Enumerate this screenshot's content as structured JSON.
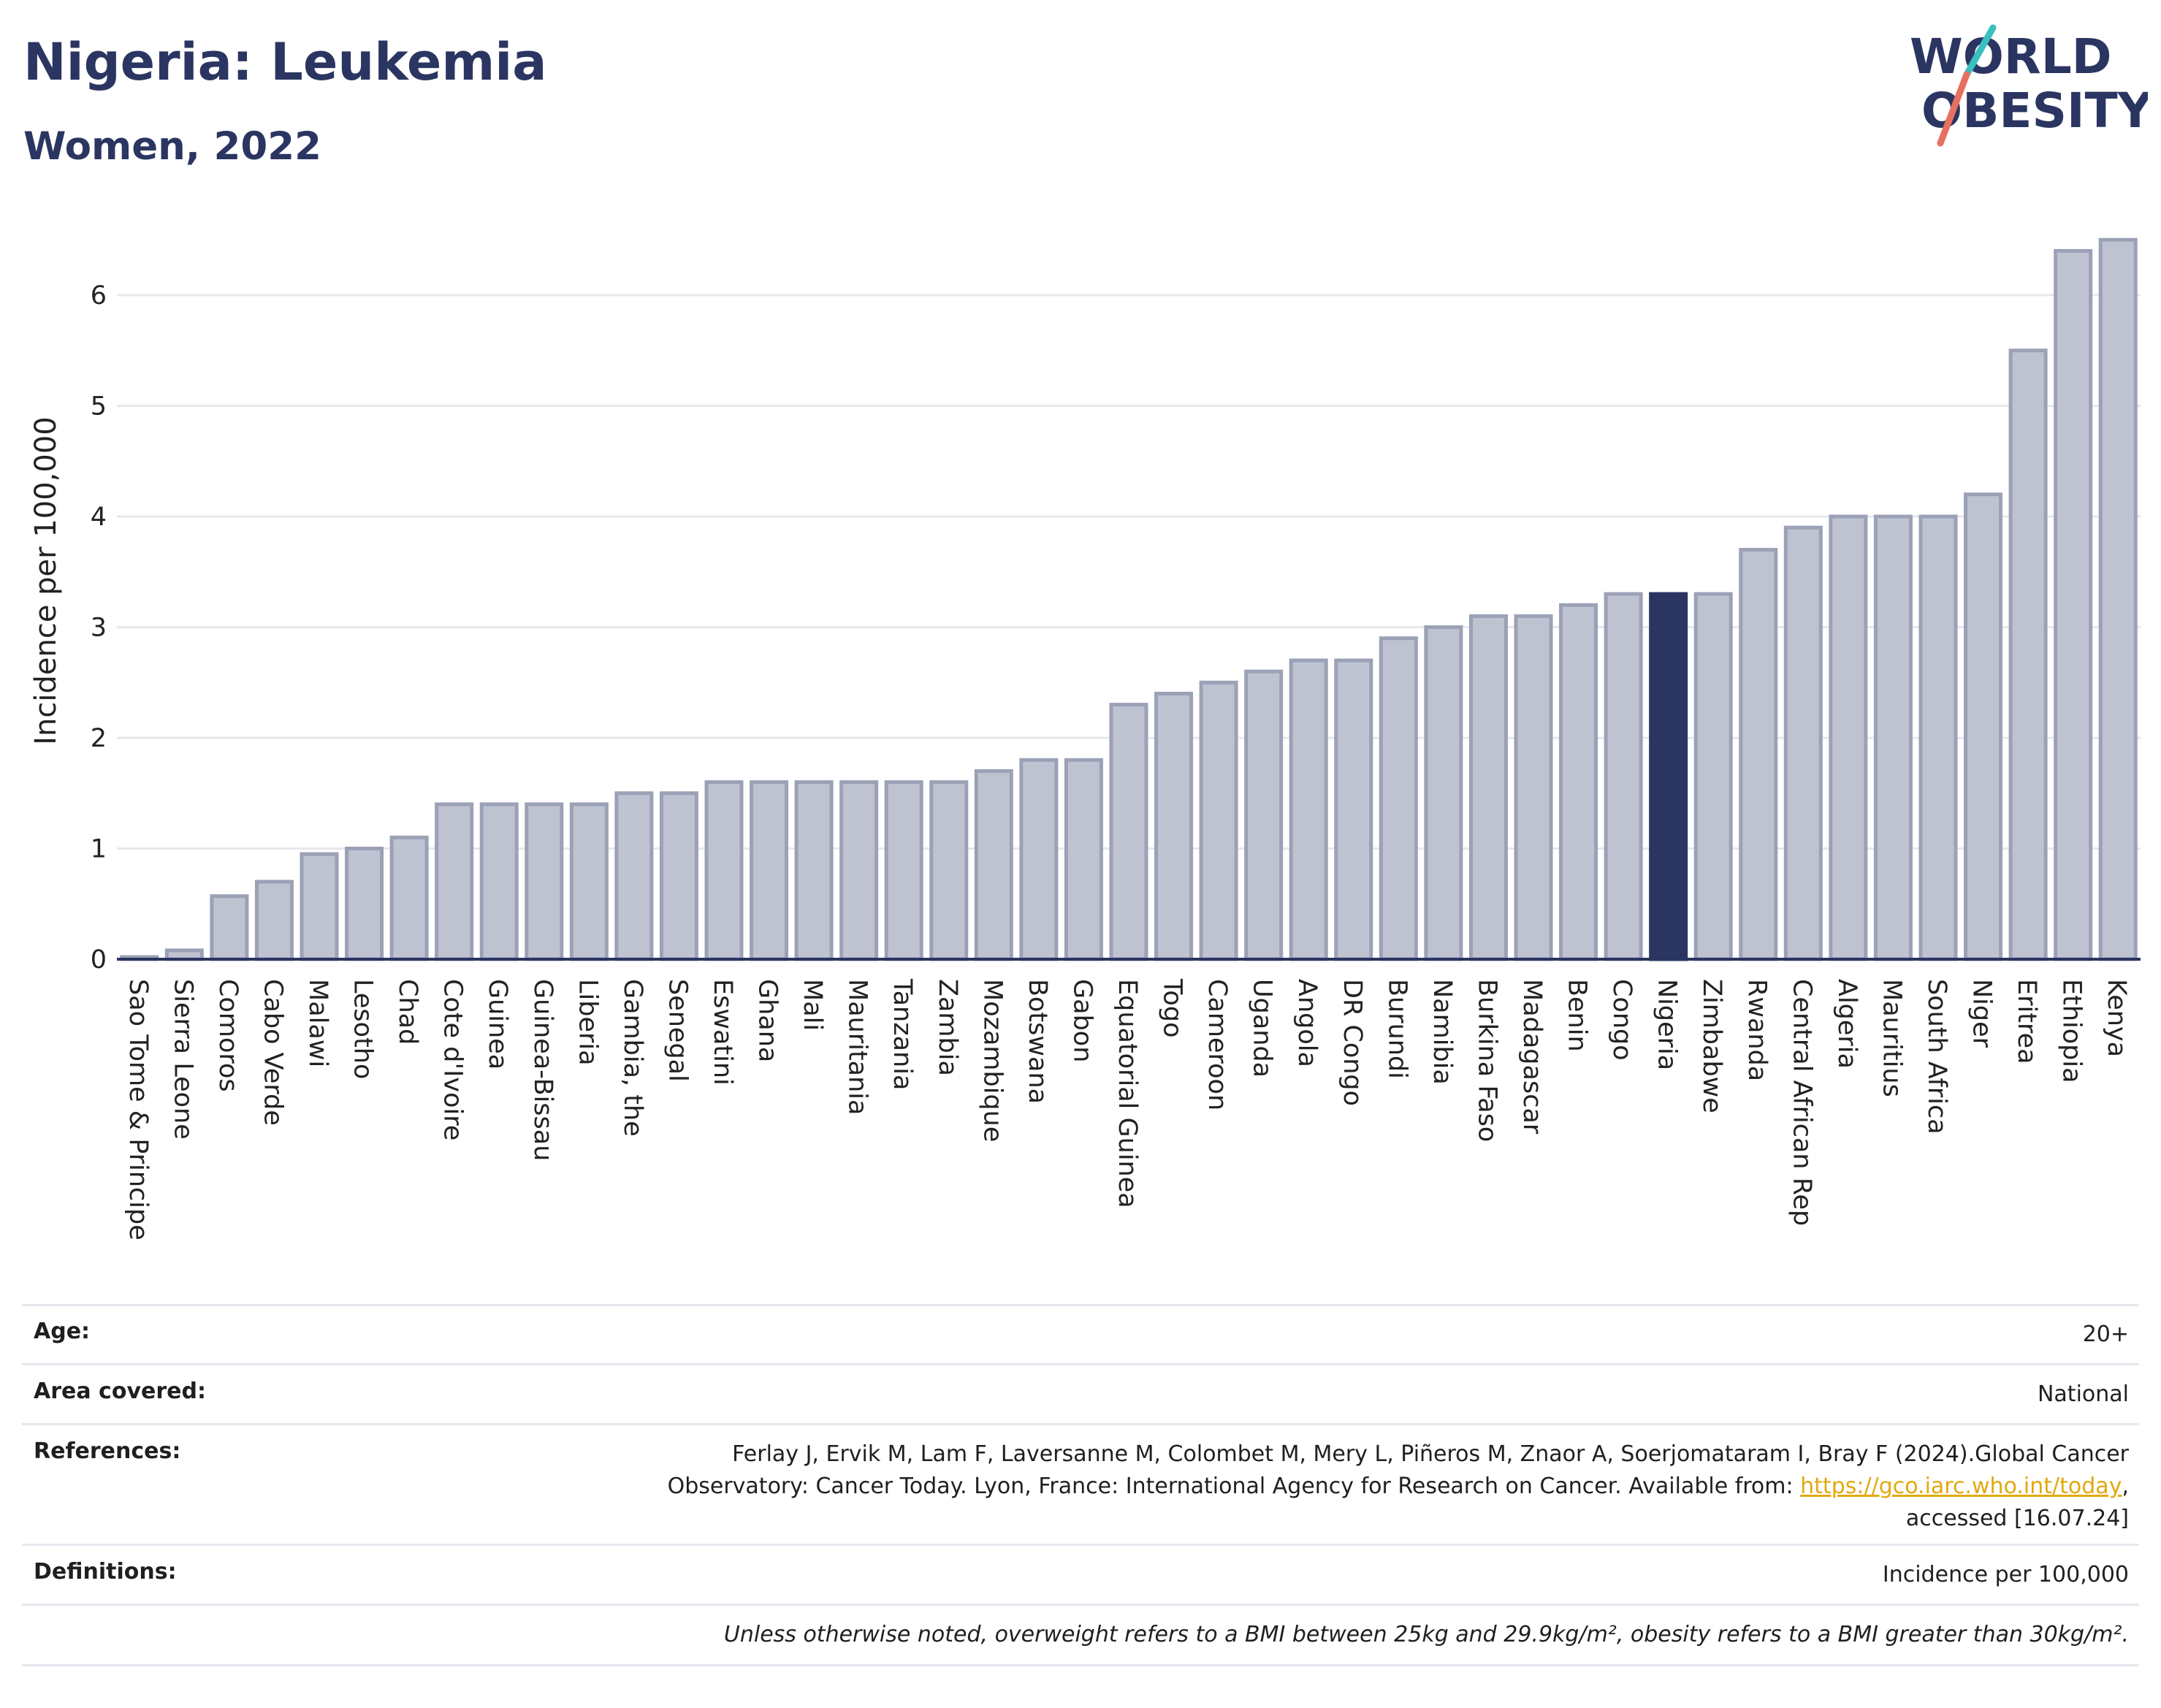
{
  "header": {
    "title": "Nigeria: Leukemia",
    "subtitle": "Women, 2022"
  },
  "logo": {
    "line1": "WORLD",
    "line2": "OBESITY"
  },
  "colors": {
    "bar": "#bfc3d1",
    "bar_stroke": "#9ba1b6",
    "highlight": "#2b3561",
    "grid": "#e6e8ee",
    "title": "#2b3561",
    "logo_teal": "#3bbfbf",
    "logo_coral": "#e8705f"
  },
  "chart_data": {
    "type": "bar",
    "ylabel": "Incidence per 100,000",
    "ylim": [
      0,
      6.6
    ],
    "yticks": [
      0,
      1,
      2,
      3,
      4,
      5,
      6
    ],
    "grid": true,
    "highlight": "Nigeria",
    "categories": [
      "Sao Tome & Principe",
      "Sierra Leone",
      "Comoros",
      "Cabo Verde",
      "Malawi",
      "Lesotho",
      "Chad",
      "Cote d'Ivoire",
      "Guinea",
      "Guinea-Bissau",
      "Liberia",
      "Gambia, the",
      "Senegal",
      "Eswatini",
      "Ghana",
      "Mali",
      "Mauritania",
      "Tanzania",
      "Zambia",
      "Mozambique",
      "Botswana",
      "Gabon",
      "Equatorial Guinea",
      "Togo",
      "Cameroon",
      "Uganda",
      "Angola",
      "DR Congo",
      "Burundi",
      "Namibia",
      "Burkina Faso",
      "Madagascar",
      "Benin",
      "Congo",
      "Nigeria",
      "Zimbabwe",
      "Rwanda",
      "Central African Rep",
      "Algeria",
      "Mauritius",
      "South Africa",
      "Niger",
      "Eritrea",
      "Ethiopia",
      "Kenya"
    ],
    "values": [
      0.02,
      0.08,
      0.57,
      0.7,
      0.95,
      1.0,
      1.1,
      1.4,
      1.4,
      1.4,
      1.4,
      1.5,
      1.5,
      1.6,
      1.6,
      1.6,
      1.6,
      1.6,
      1.6,
      1.7,
      1.8,
      1.8,
      2.3,
      2.4,
      2.5,
      2.6,
      2.7,
      2.7,
      2.9,
      3.0,
      3.1,
      3.1,
      3.2,
      3.3,
      3.3,
      3.3,
      3.7,
      3.9,
      4.0,
      4.0,
      4.0,
      4.2,
      5.5,
      6.4,
      6.5
    ]
  },
  "info": {
    "age_label": "Age:",
    "age_value": "20+",
    "area_label": "Area covered:",
    "area_value": "National",
    "references_label": "References:",
    "references_line1": "Ferlay J, Ervik M, Lam F, Laversanne M, Colombet M, Mery L, Piñeros M, Znaor A, Soerjomataram I, Bray F (2024).Global Cancer",
    "references_line2_pre": "Observatory: Cancer Today. Lyon, France: International Agency for Research on Cancer. Available from: ",
    "references_link": "https://gco.iarc.who.int/today",
    "references_line2_post": ",",
    "references_line3": "accessed [16.07.24]",
    "definitions_label": "Definitions:",
    "definitions_value": "Incidence per 100,000",
    "note": "Unless otherwise noted, overweight refers to a BMI between 25kg and 29.9kg/m², obesity refers to a BMI greater than 30kg/m²."
  }
}
